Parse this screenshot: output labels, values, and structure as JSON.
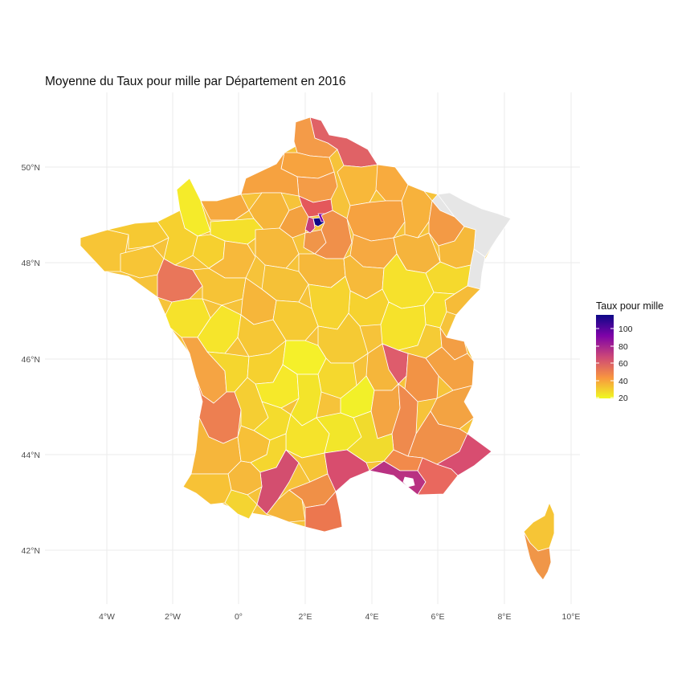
{
  "title": "Moyenne du Taux pour mille par Département en 2016",
  "axes": {
    "x_ticks": [
      "4°W",
      "2°W",
      "0°",
      "2°E",
      "4°E",
      "6°E",
      "8°E",
      "10°E"
    ],
    "y_ticks": [
      "50°N",
      "48°N",
      "46°N",
      "44°N",
      "42°N"
    ]
  },
  "legend": {
    "title": "Taux pour mille",
    "labels": [
      "100",
      "80",
      "60",
      "40",
      "20"
    ],
    "range": [
      15,
      110
    ],
    "colors": [
      "#0d0887",
      "#7e03a8",
      "#cc4778",
      "#f89540",
      "#f0f921"
    ]
  },
  "colors": {
    "missing": "#e6e6e6",
    "border": "#ffffff"
  }
}
